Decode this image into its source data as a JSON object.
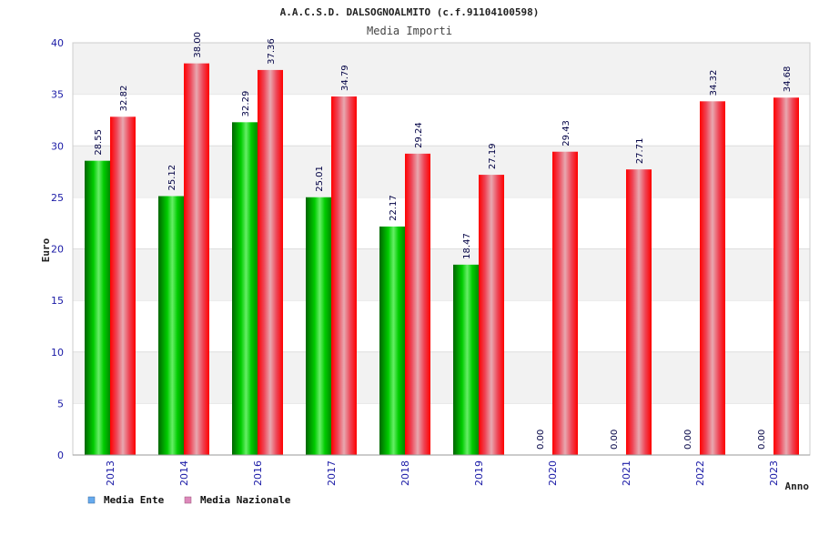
{
  "chart_data": {
    "type": "bar",
    "title": "A.A.C.S.D. DALSOGNOALMITO (c.f.91104100598)",
    "subtitle": "Media Importi",
    "xlabel": "Anno",
    "ylabel": "Euro",
    "ylim": [
      0,
      40
    ],
    "yticks": [
      0,
      5,
      10,
      15,
      20,
      25,
      30,
      35,
      40
    ],
    "grid": true,
    "legend_position": "bottom-left",
    "categories": [
      "2013",
      "2014",
      "2016",
      "2017",
      "2018",
      "2019",
      "2020",
      "2021",
      "2022",
      "2023"
    ],
    "series": [
      {
        "name": "Media Ente",
        "legend_color": "#66aaee",
        "bar_color": "#00aa00",
        "values": [
          28.55,
          25.12,
          32.29,
          25.01,
          22.17,
          18.47,
          0.0,
          0.0,
          0.0,
          0.0
        ],
        "labels": [
          "28.55",
          "25.12",
          "32.29",
          "25.01",
          "22.17",
          "18.47",
          "0.00",
          "0.00",
          "0.00",
          "0.00"
        ]
      },
      {
        "name": "Media Nazionale",
        "legend_color": "#dd88bb",
        "bar_color": "#ee1122",
        "values": [
          32.82,
          38.0,
          37.36,
          34.79,
          29.24,
          27.19,
          29.43,
          27.71,
          34.32,
          34.68
        ],
        "labels": [
          "32.82",
          "38.00",
          "37.36",
          "34.79",
          "29.24",
          "27.19",
          "29.43",
          "27.71",
          "34.32",
          "34.68"
        ]
      }
    ]
  },
  "colors": {
    "axis_text": "#1a1aa6",
    "band": "#f2f2f2",
    "grid": "#dddddd"
  }
}
